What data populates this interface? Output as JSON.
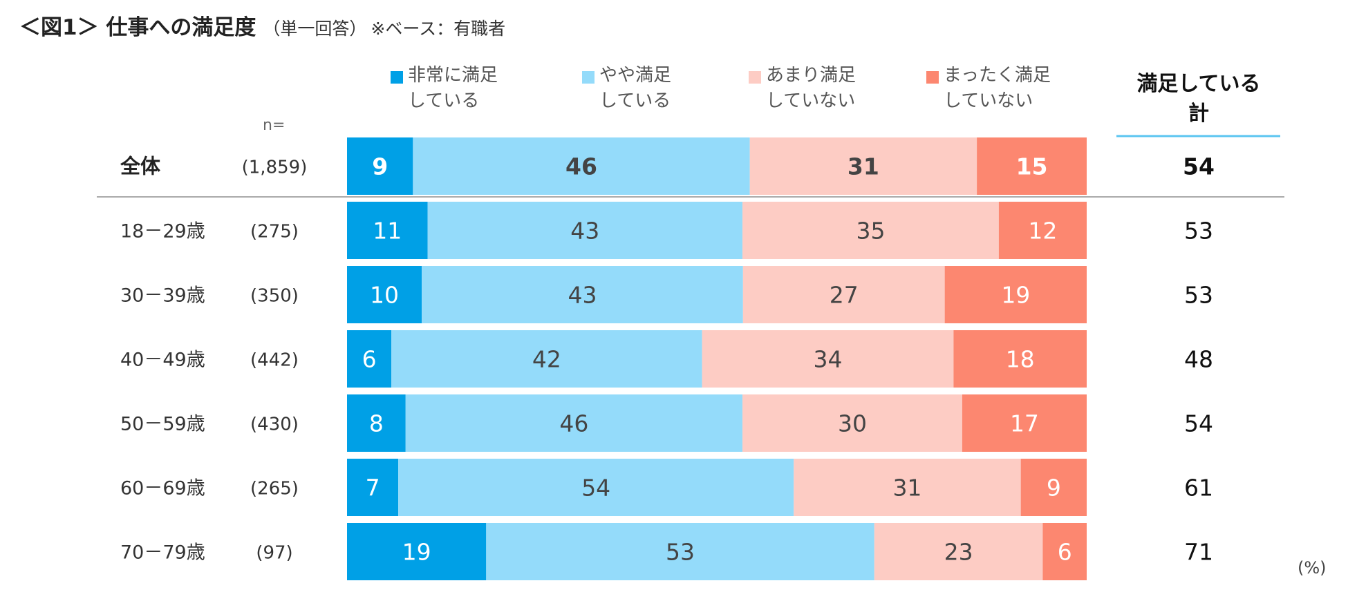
{
  "title": {
    "main": "＜図1＞ 仕事への満足度",
    "sub": "（単一回答）",
    "base": "※ベース：有職者"
  },
  "n_header": "n=",
  "unit": "(%)",
  "sum_header": [
    "満足している",
    "計"
  ],
  "colors": {
    "very_satisfied": "#00A0E6",
    "somewhat_satisfied": "#94DBFA",
    "somewhat_unsatisfied": "#FDCCC4",
    "not_satisfied": "#FC8770",
    "sum_underline": "#5BC5F0",
    "separator": "#AAAAAA"
  },
  "chart_data": {
    "type": "bar",
    "orientation": "horizontal",
    "stacked": true,
    "percent": true,
    "title": "＜図1＞ 仕事への満足度（単一回答）※ベース：有職者",
    "unit": "%",
    "legend_position": "top",
    "categories": [
      "全体",
      "18－29歳",
      "30－39歳",
      "40－49歳",
      "50－59歳",
      "60－69歳",
      "70－79歳"
    ],
    "n": [
      "(1,859)",
      "(275)",
      "(350)",
      "(442)",
      "(430)",
      "(265)",
      "(97)"
    ],
    "series": [
      {
        "name": [
          "非常に満足",
          "している"
        ],
        "key": "very_satisfied",
        "values": [
          9,
          11,
          10,
          6,
          8,
          7,
          19
        ]
      },
      {
        "name": [
          "やや満足",
          "している"
        ],
        "key": "somewhat_satisfied",
        "values": [
          46,
          43,
          43,
          42,
          46,
          54,
          53
        ]
      },
      {
        "name": [
          "あまり満足",
          "していない"
        ],
        "key": "somewhat_unsatisfied",
        "values": [
          31,
          35,
          27,
          34,
          30,
          31,
          23
        ]
      },
      {
        "name": [
          "まったく満足",
          "していない"
        ],
        "key": "not_satisfied",
        "values": [
          15,
          12,
          19,
          18,
          17,
          9,
          6
        ]
      }
    ],
    "satisfied_total": {
      "label": "満足している計",
      "values": [
        54,
        53,
        53,
        48,
        54,
        61,
        71
      ]
    }
  }
}
